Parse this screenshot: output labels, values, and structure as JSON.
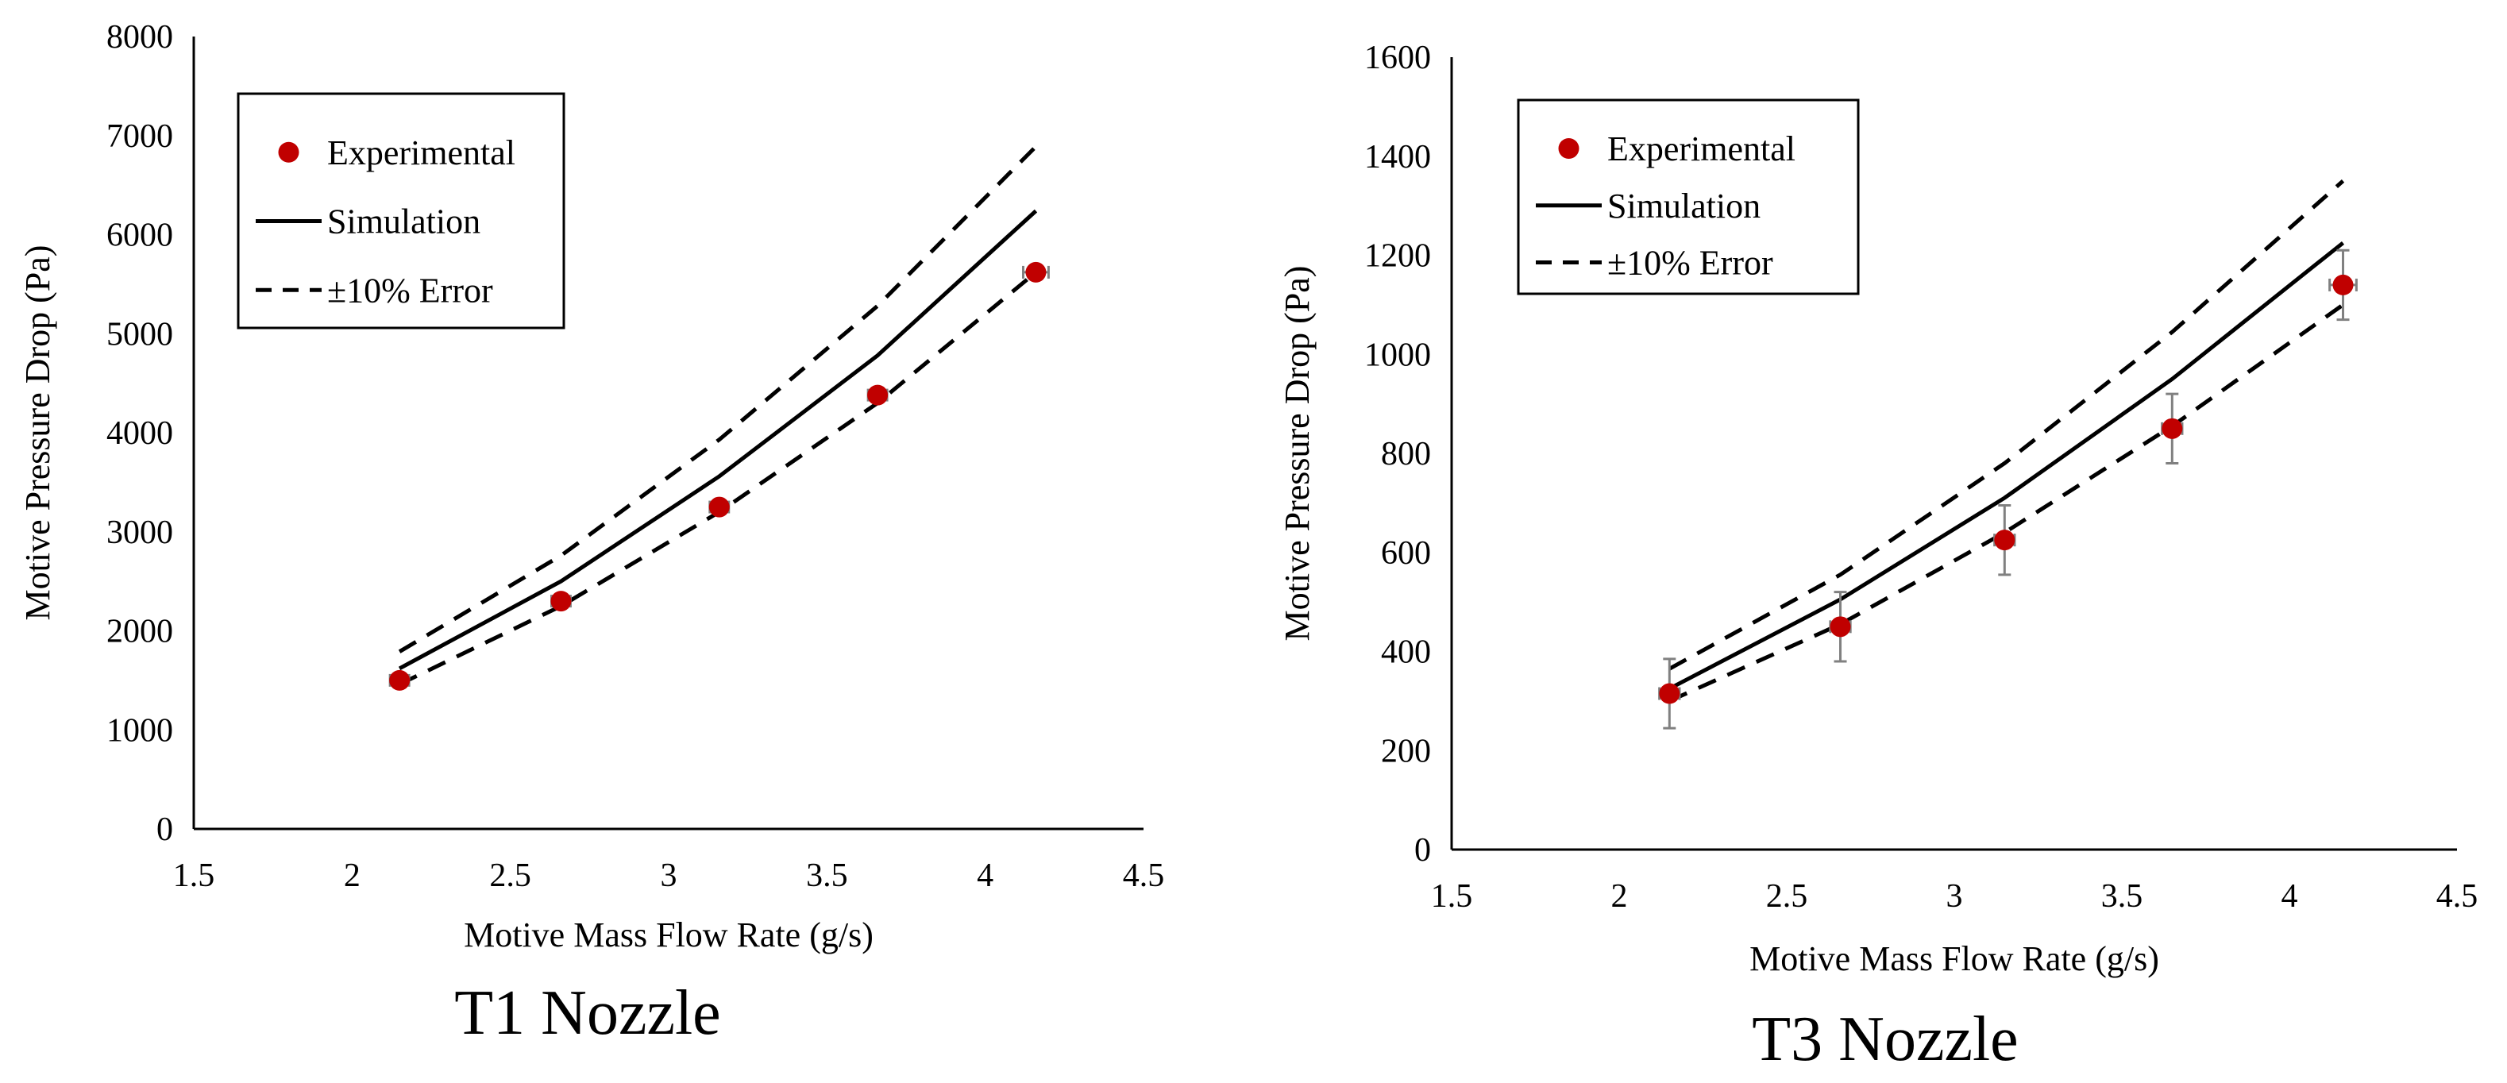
{
  "chart_data": [
    {
      "id": "t1",
      "type": "scatter",
      "title": "T1 Nozzle",
      "xlabel": "Motive Mass Flow Rate (g/s)",
      "ylabel": "Motive Pressure Drop (Pa)",
      "xlim": [
        1.5,
        4.5
      ],
      "ylim": [
        0,
        8000
      ],
      "xticks": [
        1.5,
        2,
        2.5,
        3,
        3.5,
        4,
        4.5
      ],
      "yticks": [
        0,
        1000,
        2000,
        3000,
        4000,
        5000,
        6000,
        7000,
        8000
      ],
      "x_tick_labels": [
        "1.5",
        "2",
        "2.5",
        "3",
        "3.5",
        "4",
        "4.5"
      ],
      "y_tick_labels": [
        "0",
        "1000",
        "2000",
        "3000",
        "4000",
        "5000",
        "6000",
        "7000",
        "8000"
      ],
      "grid": false,
      "legend_position": "top-left",
      "legend": [
        "Experimental",
        "Simulation",
        "±10% Error"
      ],
      "series": [
        {
          "name": "Experimental",
          "kind": "points",
          "x": [
            2.15,
            2.66,
            3.16,
            3.66,
            4.16
          ],
          "y": [
            1500,
            2300,
            3250,
            4380,
            5620
          ],
          "y_err": [
            40,
            40,
            40,
            40,
            40
          ],
          "x_err": [
            0.03,
            0.03,
            0.03,
            0.03,
            0.04
          ]
        },
        {
          "name": "Simulation",
          "kind": "line",
          "x": [
            2.15,
            2.66,
            3.16,
            3.66,
            4.16
          ],
          "y": [
            1620,
            2500,
            3560,
            4780,
            6240
          ]
        },
        {
          "name": "+10% Error",
          "kind": "dashed",
          "x": [
            2.15,
            2.66,
            3.16,
            3.66,
            4.16
          ],
          "y": [
            1790,
            2760,
            3930,
            5280,
            6890
          ]
        },
        {
          "name": "-10% Error",
          "kind": "dashed",
          "x": [
            2.15,
            2.66,
            3.16,
            3.66,
            4.16
          ],
          "y": [
            1460,
            2250,
            3200,
            4300,
            5620
          ]
        }
      ]
    },
    {
      "id": "t3",
      "type": "scatter",
      "title": "T3 Nozzle",
      "xlabel": "Motive Mass Flow Rate (g/s)",
      "ylabel": "Motive Pressure Drop (Pa)",
      "xlim": [
        1.5,
        4.5
      ],
      "ylim": [
        0,
        1600
      ],
      "xticks": [
        1.5,
        2,
        2.5,
        3,
        3.5,
        4,
        4.5
      ],
      "yticks": [
        0,
        200,
        400,
        600,
        800,
        1000,
        1200,
        1400,
        1600
      ],
      "x_tick_labels": [
        "1.5",
        "2",
        "2.5",
        "3",
        "3.5",
        "4",
        "4.5"
      ],
      "y_tick_labels": [
        "0",
        "200",
        "400",
        "600",
        "800",
        "1000",
        "1200",
        "1400",
        "1600"
      ],
      "grid": false,
      "legend_position": "top-left",
      "legend": [
        "Experimental",
        "Simulation",
        "±10% Error"
      ],
      "series": [
        {
          "name": "Experimental",
          "kind": "points",
          "x": [
            2.15,
            2.66,
            3.15,
            3.65,
            4.16
          ],
          "y": [
            315,
            450,
            625,
            850,
            1140
          ],
          "y_err": [
            70,
            70,
            70,
            70,
            70
          ],
          "x_err": [
            0.03,
            0.03,
            0.03,
            0.03,
            0.04
          ]
        },
        {
          "name": "Simulation",
          "kind": "line",
          "x": [
            2.15,
            2.66,
            3.15,
            3.65,
            4.16
          ],
          "y": [
            325,
            505,
            710,
            950,
            1225
          ]
        },
        {
          "name": "+10% Error",
          "kind": "dashed",
          "x": [
            2.15,
            2.66,
            3.15,
            3.65,
            4.16
          ],
          "y": [
            365,
            555,
            780,
            1045,
            1350
          ]
        },
        {
          "name": "-10% Error",
          "kind": "dashed",
          "x": [
            2.15,
            2.66,
            3.15,
            3.65,
            4.16
          ],
          "y": [
            300,
            455,
            640,
            855,
            1100
          ]
        }
      ]
    }
  ],
  "colors": {
    "point": "#c00000",
    "line": "#000000",
    "error_bar": "#808080",
    "axis": "#000000"
  }
}
